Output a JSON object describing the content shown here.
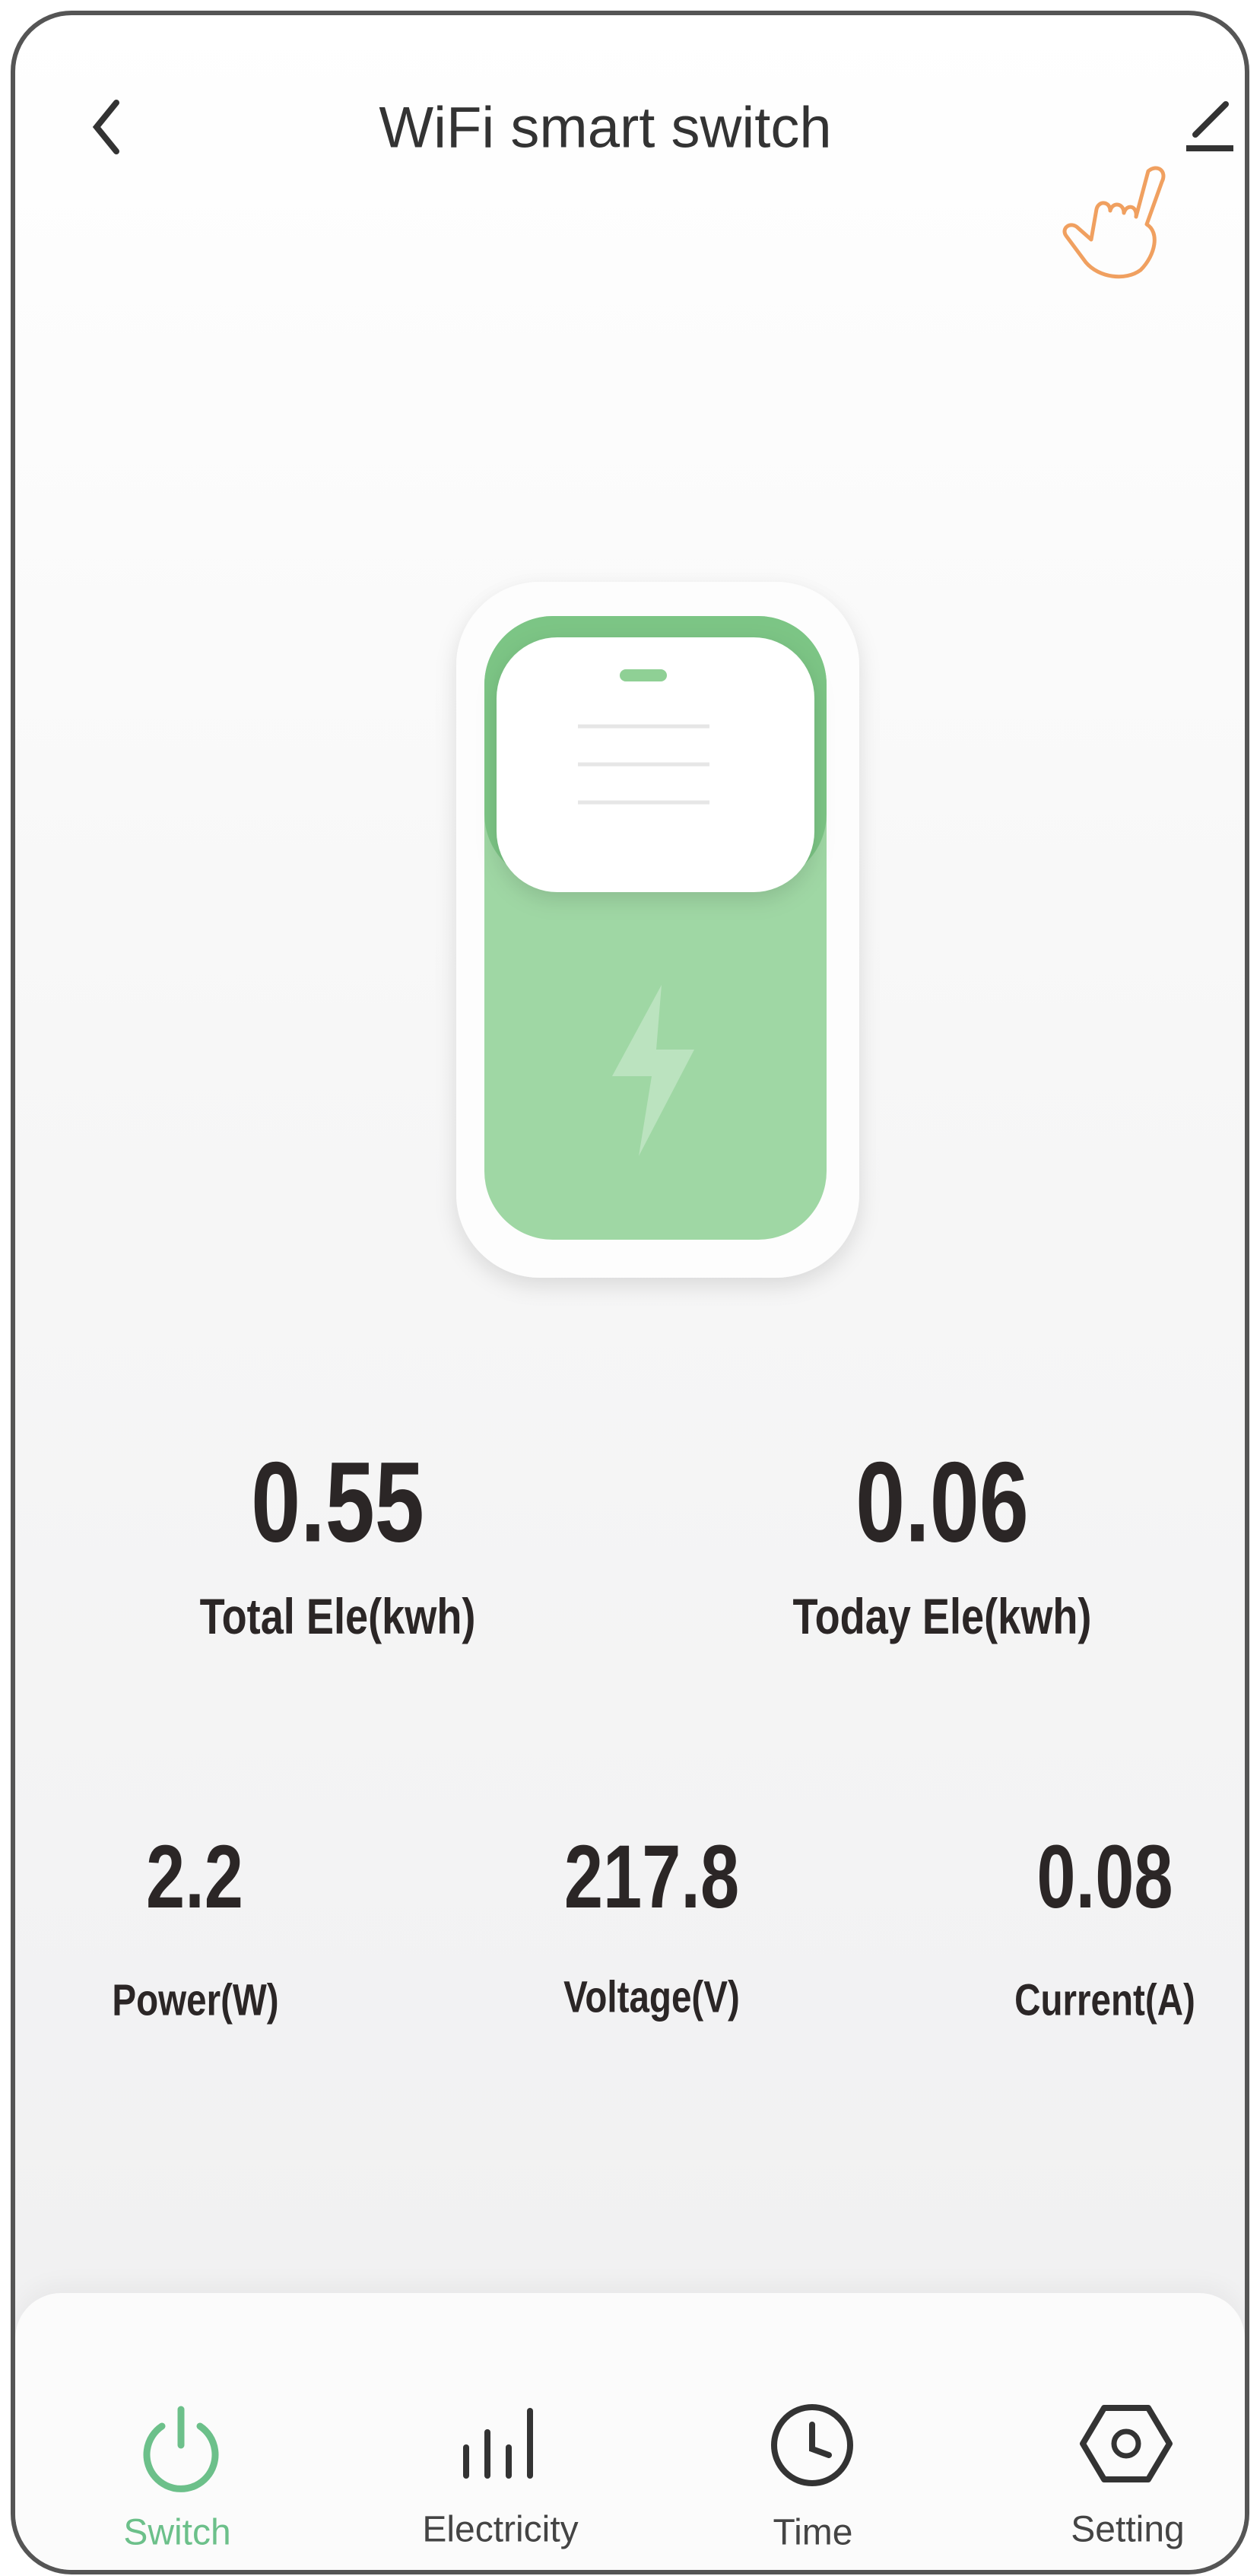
{
  "header": {
    "title": "WiFi smart switch"
  },
  "stats": [
    {
      "value": "0.55",
      "label": "Total Ele(kwh)"
    },
    {
      "value": "0.06",
      "label": "Today Ele(kwh)"
    },
    {
      "value": "2.2",
      "label": "Power(W)"
    },
    {
      "value": "217.8",
      "label": "Voltage(V)"
    },
    {
      "value": "0.08",
      "label": "Current(A)"
    }
  ],
  "nav": [
    {
      "label": "Switch",
      "active": true
    },
    {
      "label": "Electricity",
      "active": false
    },
    {
      "label": "Time",
      "active": false
    },
    {
      "label": "Setting",
      "active": false
    }
  ]
}
